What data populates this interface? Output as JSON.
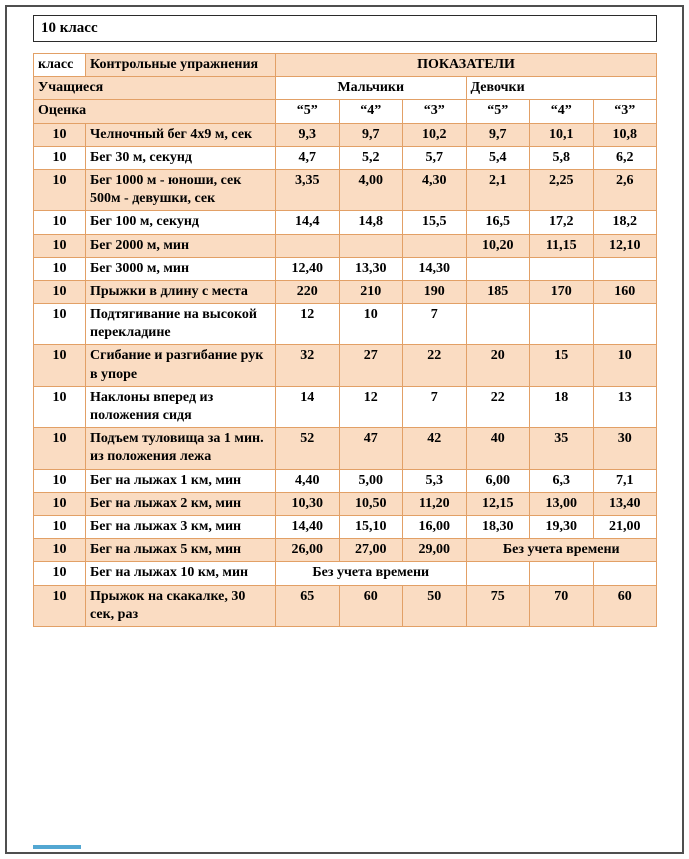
{
  "colors": {
    "shade": "#fadcc2",
    "border": "#e2a066",
    "page-border": "#4f4f4f",
    "title-border": "#2b2b2b",
    "accent-line": "#53a7d2"
  },
  "title": "10 класс",
  "table": {
    "header": {
      "col_class": "класс",
      "col_exercises": "Контрольные упражнения",
      "col_indicators": "ПОКАЗАТЕЛИ",
      "row_students": "Учащиеся",
      "boys": "Мальчики",
      "girls": "Девочки",
      "row_grade": "Оценка",
      "grades": [
        "“5”",
        "“4”",
        "“3”",
        "“5”",
        "“4”",
        "“3”"
      ]
    },
    "rows": [
      {
        "class": "10",
        "exercise": "Челночный бег 4х9 м, сек",
        "boys": [
          "9,3",
          "9,7",
          "10,2"
        ],
        "girls": [
          "9,7",
          "10,1",
          "10,8"
        ]
      },
      {
        "class": "10",
        "exercise": "Бег 30 м, секунд",
        "boys": [
          "4,7",
          "5,2",
          "5,7"
        ],
        "girls": [
          "5,4",
          "5,8",
          "6,2"
        ]
      },
      {
        "class": "10",
        "exercise": "Бег 1000 м - юноши, сек 500м - девушки, сек",
        "boys": [
          "3,35",
          "4,00",
          "4,30"
        ],
        "girls": [
          "2,1",
          "2,25",
          "2,6"
        ]
      },
      {
        "class": "10",
        "exercise": "Бег 100 м, секунд",
        "boys": [
          "14,4",
          "14,8",
          "15,5"
        ],
        "girls": [
          "16,5",
          "17,2",
          "18,2"
        ]
      },
      {
        "class": "10",
        "exercise": "Бег 2000 м, мин",
        "boys": [
          "",
          "",
          ""
        ],
        "girls": [
          "10,20",
          "11,15",
          "12,10"
        ]
      },
      {
        "class": "10",
        "exercise": "Бег 3000 м, мин",
        "boys": [
          "12,40",
          "13,30",
          "14,30"
        ],
        "girls": [
          "",
          "",
          ""
        ]
      },
      {
        "class": "10",
        "exercise": "Прыжки в длину с места",
        "boys": [
          "220",
          "210",
          "190"
        ],
        "girls": [
          "185",
          "170",
          "160"
        ]
      },
      {
        "class": "10",
        "exercise": "Подтягивание на высокой перекладине",
        "boys": [
          "12",
          "10",
          "7"
        ],
        "girls": [
          "",
          "",
          ""
        ]
      },
      {
        "class": "10",
        "exercise": "Сгибание и разгибание рук в упоре",
        "boys": [
          "32",
          "27",
          "22"
        ],
        "girls": [
          "20",
          "15",
          "10"
        ]
      },
      {
        "class": "10",
        "exercise": "Наклоны вперед из положения сидя",
        "boys": [
          "14",
          "12",
          "7"
        ],
        "girls": [
          "22",
          "18",
          "13"
        ]
      },
      {
        "class": "10",
        "exercise": "Подъем туловища за 1 мин. из положения лежа",
        "boys": [
          "52",
          "47",
          "42"
        ],
        "girls": [
          "40",
          "35",
          "30"
        ]
      },
      {
        "class": "10",
        "exercise": "Бег на лыжах 1 км, мин",
        "boys": [
          "4,40",
          "5,00",
          "5,3"
        ],
        "girls": [
          "6,00",
          "6,3",
          "7,1"
        ]
      },
      {
        "class": "10",
        "exercise": "Бег на лыжах 2 км, мин",
        "boys": [
          "10,30",
          "10,50",
          "11,20"
        ],
        "girls": [
          "12,15",
          "13,00",
          "13,40"
        ]
      },
      {
        "class": "10",
        "exercise": "Бег на лыжах 3 км, мин",
        "boys": [
          "14,40",
          "15,10",
          "16,00"
        ],
        "girls": [
          "18,30",
          "19,30",
          "21,00"
        ]
      },
      {
        "class": "10",
        "exercise": "Бег на лыжах 5 км, мин",
        "boys": [
          "26,00",
          "27,00",
          "29,00"
        ],
        "girls_merged": "Без учета времени"
      },
      {
        "class": "10",
        "exercise": "Бег на лыжах 10 км, мин",
        "boys_merged": "Без учета времени",
        "girls": [
          "",
          "",
          ""
        ]
      },
      {
        "class": "10",
        "exercise": "Прыжок на скакалке, 30 сек, раз",
        "boys": [
          "65",
          "60",
          "50"
        ],
        "girls": [
          "75",
          "70",
          "60"
        ]
      }
    ]
  }
}
